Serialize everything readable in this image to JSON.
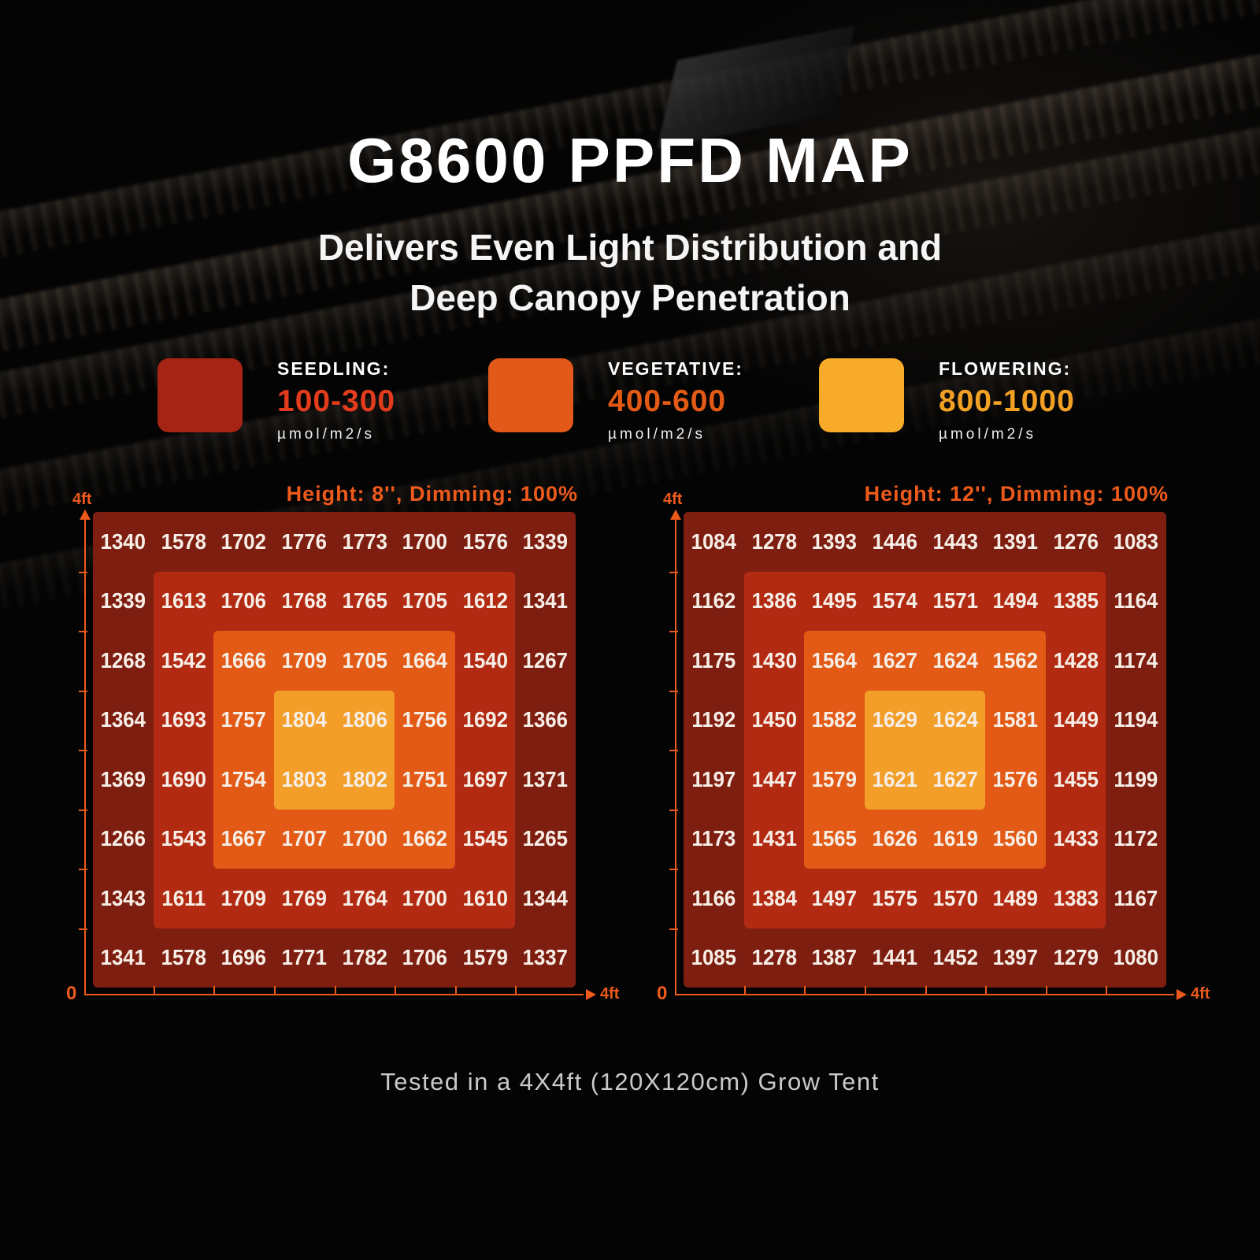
{
  "header": {
    "title": "G8600 PPFD MAP",
    "subtitle_line1": "Delivers Even Light Distribution and",
    "subtitle_line2": "Deep Canopy Penetration"
  },
  "legend": {
    "items": [
      {
        "label": "SEEDLING:",
        "range": "100-300",
        "unit": "µmol/m2/s",
        "swatch_color": "#a62413",
        "range_color": "#e23c1d"
      },
      {
        "label": "VEGETATIVE:",
        "range": "400-600",
        "unit": "µmol/m2/s",
        "swatch_color": "#e2591a",
        "range_color": "#e25a15"
      },
      {
        "label": "FLOWERING:",
        "range": "800-1000",
        "unit": "µmol/m2/s",
        "swatch_color": "#f7ab28",
        "range_color": "#f2a124"
      }
    ]
  },
  "chart_data": [
    {
      "type": "heatmap",
      "title": "Height: 8'', Dimming: 100%",
      "unit": "µmol/m2/s",
      "x_axis": {
        "origin_label": "0",
        "end_label": "4ft"
      },
      "y_axis": {
        "end_label": "4ft"
      },
      "grid_size": "8x8",
      "tent_size_ft": 4,
      "zone_colors": [
        "#7d1e10",
        "#b22a12",
        "#e25a15",
        "#f29e28"
      ],
      "values": [
        [
          1340,
          1578,
          1702,
          1776,
          1773,
          1700,
          1576,
          1339
        ],
        [
          1339,
          1613,
          1706,
          1768,
          1765,
          1705,
          1612,
          1341
        ],
        [
          1268,
          1542,
          1666,
          1709,
          1705,
          1664,
          1540,
          1267
        ],
        [
          1364,
          1693,
          1757,
          1804,
          1806,
          1756,
          1692,
          1366
        ],
        [
          1369,
          1690,
          1754,
          1803,
          1802,
          1751,
          1697,
          1371
        ],
        [
          1266,
          1543,
          1667,
          1707,
          1700,
          1662,
          1545,
          1265
        ],
        [
          1343,
          1611,
          1709,
          1769,
          1764,
          1700,
          1610,
          1344
        ],
        [
          1341,
          1578,
          1696,
          1771,
          1782,
          1706,
          1579,
          1337
        ]
      ]
    },
    {
      "type": "heatmap",
      "title": "Height: 12'', Dimming: 100%",
      "unit": "µmol/m2/s",
      "x_axis": {
        "origin_label": "0",
        "end_label": "4ft"
      },
      "y_axis": {
        "end_label": "4ft"
      },
      "grid_size": "8x8",
      "tent_size_ft": 4,
      "zone_colors": [
        "#7d1e10",
        "#b22a12",
        "#e25a15",
        "#f29e28"
      ],
      "values": [
        [
          1084,
          1278,
          1393,
          1446,
          1443,
          1391,
          1276,
          1083
        ],
        [
          1162,
          1386,
          1495,
          1574,
          1571,
          1494,
          1385,
          1164
        ],
        [
          1175,
          1430,
          1564,
          1627,
          1624,
          1562,
          1428,
          1174
        ],
        [
          1192,
          1450,
          1582,
          1629,
          1624,
          1581,
          1449,
          1194
        ],
        [
          1197,
          1447,
          1579,
          1621,
          1627,
          1576,
          1455,
          1199
        ],
        [
          1173,
          1431,
          1565,
          1626,
          1619,
          1560,
          1433,
          1172
        ],
        [
          1166,
          1384,
          1497,
          1575,
          1570,
          1489,
          1383,
          1167
        ],
        [
          1085,
          1278,
          1387,
          1441,
          1452,
          1397,
          1279,
          1080
        ]
      ]
    }
  ],
  "footer": {
    "note": "Tested in a 4X4ft (120X120cm) Grow Tent"
  },
  "colors": {
    "axis": "#ee5a1c",
    "header_text": "#ee5a1c",
    "value_text": "#f6eee6"
  }
}
